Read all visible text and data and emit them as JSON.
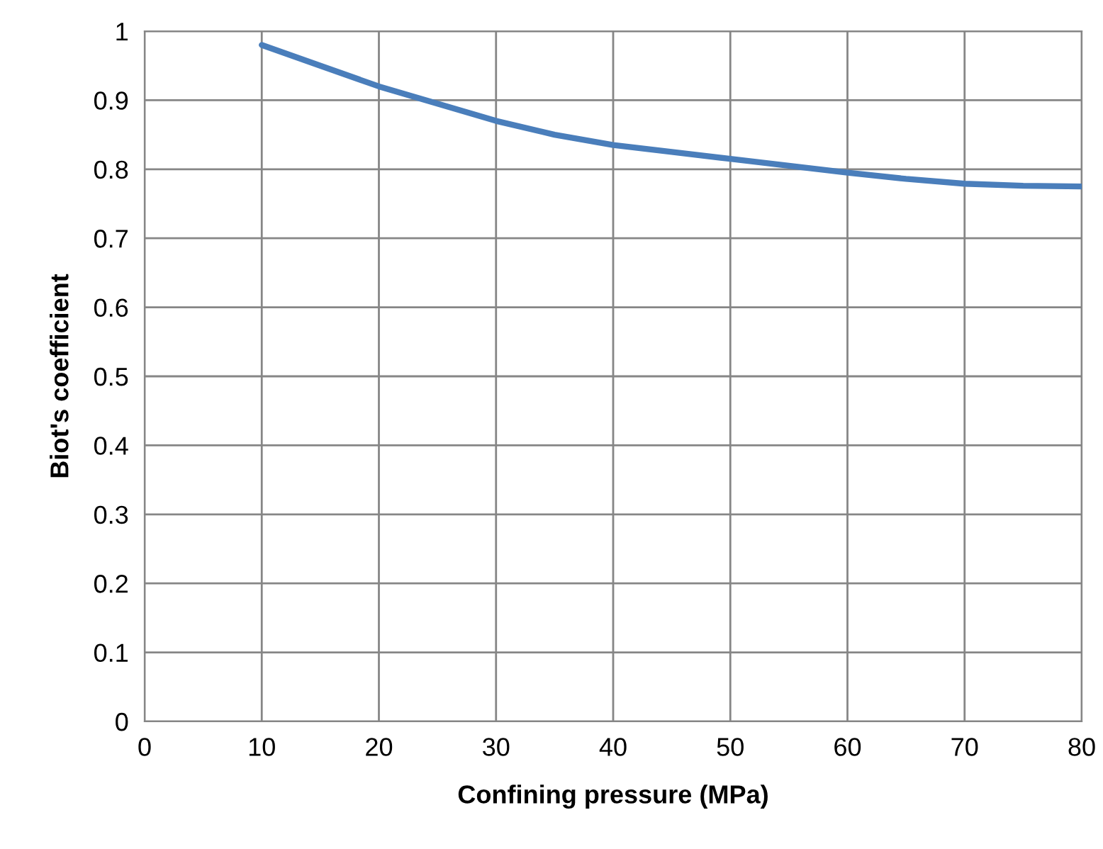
{
  "chart_data": {
    "type": "line",
    "xlabel": "Confining pressure (MPa)",
    "ylabel": "Biot's coefficient",
    "x": [
      10,
      15,
      20,
      25,
      30,
      35,
      40,
      45,
      50,
      55,
      60,
      65,
      70,
      75,
      80
    ],
    "series": [
      {
        "color": "#4a7ebb",
        "values": [
          0.98,
          0.95,
          0.92,
          0.895,
          0.87,
          0.85,
          0.835,
          0.825,
          0.815,
          0.805,
          0.795,
          0.786,
          0.779,
          0.776,
          0.775
        ]
      }
    ],
    "xlim": [
      0,
      80
    ],
    "xticks": [
      0,
      10,
      20,
      30,
      40,
      50,
      60,
      70,
      80
    ],
    "ylim": [
      0,
      1
    ],
    "yticks": [
      0,
      0.1,
      0.2,
      0.3,
      0.4,
      0.5,
      0.6,
      0.7,
      0.8,
      0.9,
      1
    ],
    "grid": true,
    "marker": "none",
    "line_style": "solid"
  }
}
